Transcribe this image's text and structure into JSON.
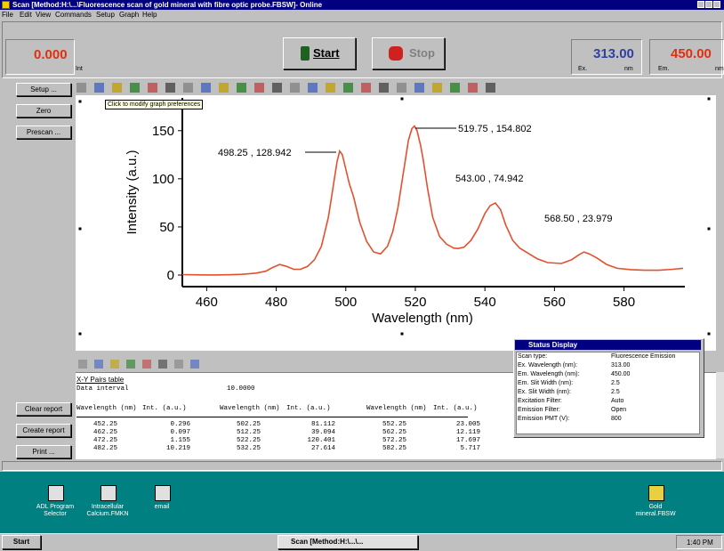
{
  "window": {
    "title": "Scan [Method:H:\\...\\Fluorescence scan of gold mineral with fibre optic probe.FBSW]- Online",
    "menu": [
      "File",
      "Edit",
      "View",
      "Commands",
      "Setup",
      "Graph",
      "Help"
    ]
  },
  "top_panel": {
    "intensity": "0.000",
    "intensity_unit": "Int",
    "start": "Start",
    "stop": "Stop",
    "ex_value": "313.00",
    "ex_label": "Ex.",
    "ex_unit": "nm",
    "em_value": "450.00",
    "em_label": "Em.",
    "em_unit": "nm"
  },
  "side_buttons": [
    "Setup ...",
    "Zero",
    "Prescan ..."
  ],
  "report_buttons": [
    "Clear report",
    "Create report",
    "Print ..."
  ],
  "tooltip": "Click to modify graph preferences",
  "chart_data": {
    "type": "line",
    "x_label": "Wavelength (nm)",
    "y_label": "Intensity (a.u.)",
    "color": "#e4502e",
    "x": [
      453,
      458,
      462,
      466,
      470,
      474,
      477,
      479,
      481,
      483,
      485,
      487,
      489,
      491,
      493,
      495,
      496.5,
      497.5,
      498.25,
      499,
      500,
      501,
      502.25,
      504,
      506,
      508,
      510,
      512,
      513.5,
      515,
      516.5,
      518,
      519,
      519.75,
      520.5,
      521.5,
      522.25,
      523.5,
      525,
      527,
      529,
      531,
      532.25,
      534,
      536,
      538,
      540,
      541.5,
      543,
      544.5,
      546,
      548,
      550,
      552.25,
      555,
      558,
      562,
      565,
      567,
      568.5,
      570,
      572.25,
      575,
      578,
      582,
      586,
      590,
      594,
      597
    ],
    "values": [
      0.5,
      0.2,
      0.1,
      0.3,
      0.8,
      2,
      4,
      8,
      11,
      9,
      6,
      6,
      9,
      16,
      30,
      60,
      95,
      118,
      128.9,
      125,
      110,
      95,
      81,
      55,
      35,
      24,
      22,
      30,
      45,
      70,
      105,
      140,
      152,
      154.8,
      150,
      135,
      120,
      90,
      60,
      40,
      32,
      28,
      27.6,
      29,
      36,
      48,
      64,
      72,
      74.9,
      68,
      52,
      36,
      28,
      23,
      17,
      13,
      12,
      16,
      21,
      24,
      22,
      17.7,
      11,
      7,
      5.7,
      5,
      5,
      6,
      7
    ],
    "xlim": [
      453,
      597.5
    ],
    "ylim": [
      -12,
      184
    ],
    "xticks": [
      460,
      480,
      500,
      520,
      540,
      560,
      580
    ],
    "yticks": [
      0,
      50,
      100,
      150
    ],
    "annotations": [
      "498.25 , 128.942",
      "519.75 , 154.802",
      "543.00 , 74.942",
      "568.50 , 23.979"
    ]
  },
  "report": {
    "title": "X-Y Pairs table",
    "interval_label": "Data interval",
    "interval": "10.0000",
    "header": [
      "Wavelength (nm)",
      "Int. (a.u.)",
      "Wavelength (nm)",
      "Int. (a.u.)",
      "Wavelength (nm)",
      "Int. (a.u.)"
    ],
    "rows": [
      [
        "452.25",
        "0.296",
        "502.25",
        "81.112",
        "552.25",
        "23.005"
      ],
      [
        "462.25",
        "0.097",
        "512.25",
        "39.094",
        "562.25",
        "12.119"
      ],
      [
        "472.25",
        "1.155",
        "522.25",
        "120.401",
        "572.25",
        "17.697"
      ],
      [
        "482.25",
        "10.219",
        "532.25",
        "27.614",
        "582.25",
        "5.717"
      ]
    ]
  },
  "status_display": {
    "title": "Status Display",
    "rows": [
      [
        "Scan type:",
        "Fluorescence Emission"
      ],
      [
        "Ex. Wavelength (nm):",
        "313.00"
      ],
      [
        "Em. Wavelength (nm):",
        "450.00"
      ],
      [
        "Em. Slit Width (nm):",
        "2.5"
      ],
      [
        "Ex. Slit Width (nm):",
        "2.5"
      ],
      [
        "Excitation Filter:",
        "Auto"
      ],
      [
        "Emission Filter:",
        "Open"
      ],
      [
        "Emission PMT (V):",
        "800"
      ]
    ]
  },
  "desktop_icons": [
    "ADL Program Selector",
    "Intracellular Calcium.FMKN",
    "email",
    "Gold mineral.FBSW"
  ],
  "taskbar": {
    "start": "Start",
    "task": "Scan [Method:H:\\...\\...",
    "clock": "1:40 PM"
  }
}
